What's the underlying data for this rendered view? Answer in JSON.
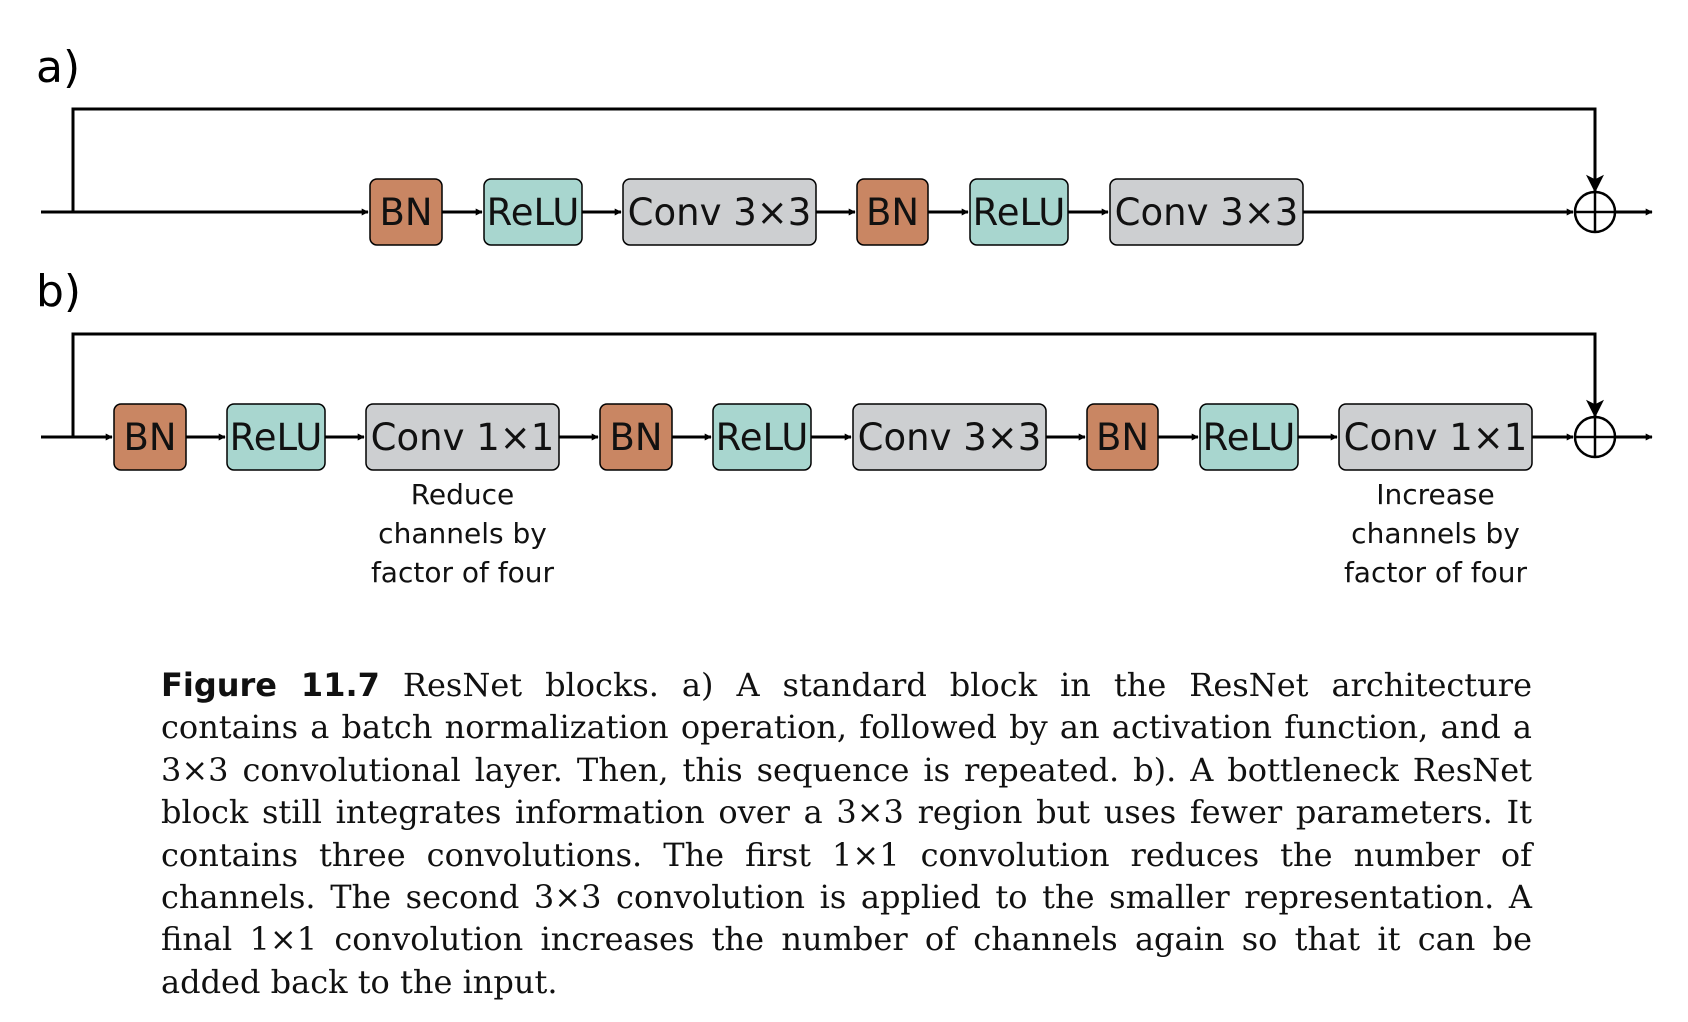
{
  "colors": {
    "bn": "#c98663",
    "relu": "#a8d6cf",
    "conv": "#cdcfd1",
    "stroke": "#000000"
  },
  "panel_a": {
    "label": "a)",
    "blocks": [
      {
        "type": "bn",
        "label": "BN"
      },
      {
        "type": "relu",
        "label": "ReLU"
      },
      {
        "type": "conv",
        "label": "Conv 3×3"
      },
      {
        "type": "bn",
        "label": "BN"
      },
      {
        "type": "relu",
        "label": "ReLU"
      },
      {
        "type": "conv",
        "label": "Conv 3×3"
      }
    ]
  },
  "panel_b": {
    "label": "b)",
    "blocks": [
      {
        "type": "bn",
        "label": "BN"
      },
      {
        "type": "relu",
        "label": "ReLU"
      },
      {
        "type": "conv",
        "label": "Conv 1×1",
        "note": [
          "Reduce",
          "channels by",
          "factor of four"
        ]
      },
      {
        "type": "bn",
        "label": "BN"
      },
      {
        "type": "relu",
        "label": "ReLU"
      },
      {
        "type": "conv",
        "label": "Conv 3×3"
      },
      {
        "type": "bn",
        "label": "BN"
      },
      {
        "type": "relu",
        "label": "ReLU"
      },
      {
        "type": "conv",
        "label": "Conv 1×1",
        "note": [
          "Increase",
          "channels by",
          "factor of four"
        ]
      }
    ]
  },
  "caption": {
    "label": "Figure 11.7",
    "text": "ResNet blocks. a) A standard block in the ResNet architecture contains a batch normalization operation, followed by an activation function, and a 3×3 convolutional layer. Then, this sequence is repeated. b). A bottleneck ResNet block still integrates information over a 3×3 region but uses fewer parameters. It contains three convolutions. The first 1×1 convolution reduces the number of channels. The second 3×3 convolution is applied to the smaller representation. A final 1×1 convolution increases the number of channels again so that it can be added back to the input."
  }
}
